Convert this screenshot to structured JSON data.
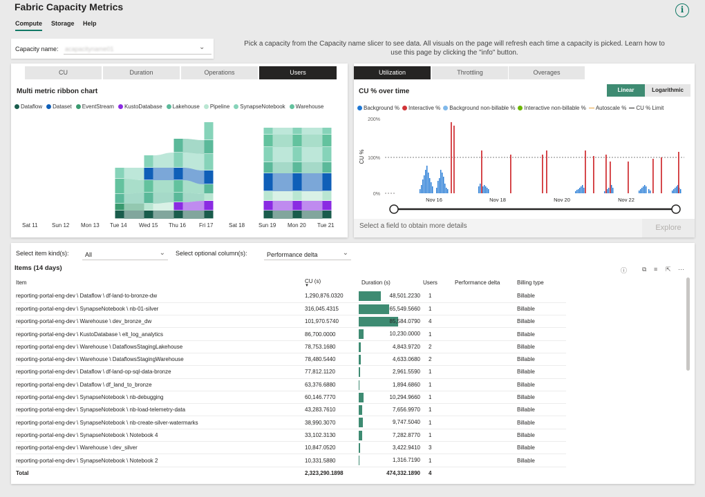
{
  "app": {
    "title": "Fabric Capacity Metrics",
    "info_label": "i"
  },
  "nav": {
    "tabs": [
      "Compute",
      "Storage",
      "Help"
    ]
  },
  "capacity": {
    "label": "Capacity name:",
    "value": "acapacityname01"
  },
  "help_text": "Pick a capacity from the Capacity name slicer to see data. All visuals on the page will refresh each time a capacity is picked. Learn how to use this page by clicking the \"info\" button.",
  "ribbon": {
    "tabs": [
      "CU",
      "Duration",
      "Operations",
      "Users"
    ],
    "active_tab": "Users",
    "title": "Multi metric ribbon chart",
    "legend": [
      {
        "name": "Dataflow",
        "color": "#1a5c4c"
      },
      {
        "name": "Dataset",
        "color": "#0f5fb8"
      },
      {
        "name": "EventStream",
        "color": "#3a9a6f"
      },
      {
        "name": "KustoDatabase",
        "color": "#8a2be2"
      },
      {
        "name": "Lakehouse",
        "color": "#5bb99a"
      },
      {
        "name": "Pipeline",
        "color": "#b9e6d2"
      },
      {
        "name": "SynapseNotebook",
        "color": "#86d3b9"
      },
      {
        "name": "Warehouse",
        "color": "#63c29e"
      }
    ],
    "days": [
      "Sat 11",
      "Sun 12",
      "Mon 13",
      "Tue 14",
      "Wed 15",
      "Thu 16",
      "Fri 17",
      "Sat 18",
      "Sun 19",
      "Mon 20",
      "Tue 21"
    ]
  },
  "utilization": {
    "tabs": [
      "Utilization",
      "Throttling",
      "Overages"
    ],
    "active_tab": "Utilization",
    "title": "CU % over time",
    "scale_options": [
      "Linear",
      "Logarithmic"
    ],
    "active_scale": "Linear",
    "legend": [
      {
        "name": "Background %",
        "color": "#1f77d4",
        "shape": "dot"
      },
      {
        "name": "Interactive %",
        "color": "#d13438",
        "shape": "dot"
      },
      {
        "name": "Background non-billable %",
        "color": "#7fb8ea",
        "shape": "dot"
      },
      {
        "name": "Interactive non-billable %",
        "color": "#6bb700",
        "shape": "dot"
      },
      {
        "name": "Autoscale %",
        "color": "#e8a33d",
        "shape": "dash"
      },
      {
        "name": "CU % Limit",
        "color": "#252423",
        "shape": "dash"
      }
    ],
    "y_axis_label": "CU %",
    "y_ticks": [
      "200%",
      "100%",
      "0%"
    ],
    "x_ticks": [
      "Nov 16",
      "Nov 18",
      "Nov 20",
      "Nov 22"
    ],
    "select_hint": "Select a field to obtain more details",
    "explore_label": "Explore"
  },
  "filters": {
    "item_kind_label": "Select item kind(s):",
    "item_kind_value": "All",
    "optional_col_label": "Select optional column(s):",
    "optional_col_value": "Performance delta"
  },
  "items_table": {
    "title": "Items (14 days)",
    "columns": [
      "Item",
      "CU (s)",
      "Duration (s)",
      "Users",
      "Performance delta",
      "Billing type"
    ],
    "rows": [
      {
        "item": "reporting-portal-eng-dev \\ Dataflow \\ df-land-to-bronze-dw",
        "cu": "1,290,876.0320",
        "duration": "48,501.2230",
        "dur_value": 48501.223,
        "users": "1",
        "perf": "",
        "billing": "Billable"
      },
      {
        "item": "reporting-portal-eng-dev \\ SynapseNotebook \\ nb-01-silver",
        "cu": "316,045.4315",
        "duration": "65,549.5660",
        "dur_value": 65549.566,
        "users": "1",
        "perf": "",
        "billing": "Billable"
      },
      {
        "item": "reporting-portal-eng-dev \\ Warehouse \\ dev_bronze_dw",
        "cu": "101,970.5740",
        "duration": "85,584.0790",
        "dur_value": 85584.079,
        "users": "4",
        "perf": "",
        "billing": "Billable"
      },
      {
        "item": "reporting-portal-eng-dev \\ KustoDatabase \\ elt_log_analytics",
        "cu": "86,700.0000",
        "duration": "10,230.0000",
        "dur_value": 10230.0,
        "users": "1",
        "perf": "",
        "billing": "Billable"
      },
      {
        "item": "reporting-portal-eng-dev \\ Warehouse \\ DataflowsStagingLakehouse",
        "cu": "78,753.1680",
        "duration": "4,843.9720",
        "dur_value": 4843.972,
        "users": "2",
        "perf": "",
        "billing": "Billable"
      },
      {
        "item": "reporting-portal-eng-dev \\ Warehouse \\ DataflowsStagingWarehouse",
        "cu": "78,480.5440",
        "duration": "4,633.0680",
        "dur_value": 4633.068,
        "users": "2",
        "perf": "",
        "billing": "Billable"
      },
      {
        "item": "reporting-portal-eng-dev \\ Dataflow \\ df-land-op-sql-data-bronze",
        "cu": "77,812.1120",
        "duration": "2,961.5590",
        "dur_value": 2961.559,
        "users": "1",
        "perf": "",
        "billing": "Billable"
      },
      {
        "item": "reporting-portal-eng-dev \\ Dataflow \\ df_land_to_bronze",
        "cu": "63,376.6880",
        "duration": "1,894.6860",
        "dur_value": 1894.686,
        "users": "1",
        "perf": "",
        "billing": "Billable"
      },
      {
        "item": "reporting-portal-eng-dev \\ SynapseNotebook \\ nb-debugging",
        "cu": "60,146.7770",
        "duration": "10,294.9660",
        "dur_value": 10294.966,
        "users": "1",
        "perf": "",
        "billing": "Billable"
      },
      {
        "item": "reporting-portal-eng-dev \\ SynapseNotebook \\ nb-load-telemetry-data",
        "cu": "43,283.7610",
        "duration": "7,656.9970",
        "dur_value": 7656.997,
        "users": "1",
        "perf": "",
        "billing": "Billable"
      },
      {
        "item": "reporting-portal-eng-dev \\ SynapseNotebook \\ nb-create-silver-watermarks",
        "cu": "38,990.3070",
        "duration": "9,747.5040",
        "dur_value": 9747.504,
        "users": "1",
        "perf": "",
        "billing": "Billable"
      },
      {
        "item": "reporting-portal-eng-dev \\ SynapseNotebook \\ Notebook 4",
        "cu": "33,102.3130",
        "duration": "7,282.8770",
        "dur_value": 7282.877,
        "users": "1",
        "perf": "",
        "billing": "Billable"
      },
      {
        "item": "reporting-portal-eng-dev \\ Warehouse \\ dev_silver",
        "cu": "10,847.0520",
        "duration": "3,422.9410",
        "dur_value": 3422.941,
        "users": "3",
        "perf": "",
        "billing": "Billable"
      },
      {
        "item": "reporting-portal-eng-dev \\ SynapseNotebook \\ Notebook 2",
        "cu": "10,331.5880",
        "duration": "1,316.7190",
        "dur_value": 1316.719,
        "users": "1",
        "perf": "",
        "billing": "Billable"
      }
    ],
    "total": {
      "label": "Total",
      "cu": "2,323,290.1898",
      "duration": "474,332.1890",
      "users": "4"
    }
  }
}
